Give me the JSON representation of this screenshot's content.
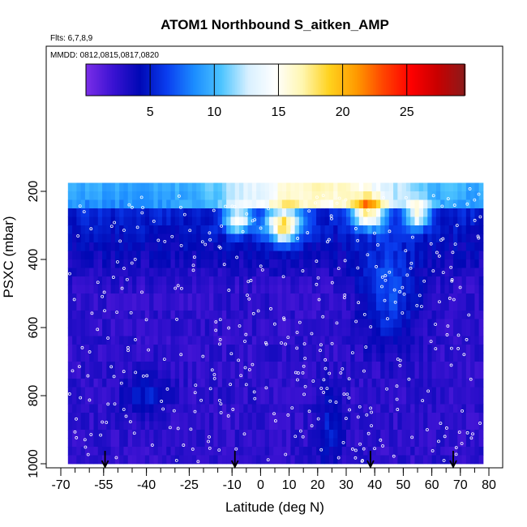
{
  "chart_data": {
    "type": "heatmap",
    "title": "ATOM1 Northbound S_aitken_AMP",
    "flights_label": "Flts: 6,7,8,9",
    "dates_label": "MMDD: 0812,0815,0817,0820",
    "xlabel": "Latitude (deg N)",
    "ylabel": "PSXC (mbar)",
    "xlim": [
      -70,
      80
    ],
    "ylim": [
      1000,
      0
    ],
    "data_extent": {
      "lat": [
        -67.5,
        77.5
      ],
      "pressure": [
        175,
        1000
      ]
    },
    "x_ticks": [
      -70,
      -55,
      -40,
      -25,
      -10,
      0,
      10,
      20,
      30,
      40,
      50,
      60,
      70,
      80
    ],
    "x_minor_step": 5,
    "y_ticks": [
      200,
      400,
      600,
      800,
      1000
    ],
    "colorbar": {
      "min": 0,
      "max": 29.5,
      "ticks": [
        5,
        10,
        15,
        20,
        25
      ],
      "colors": [
        "#7b2ee8",
        "#3a12d2",
        "#0008b5",
        "#0a3ef0",
        "#1b8cff",
        "#4cc4ff",
        "#d8f0ff",
        "#ffffff",
        "#fff6b0",
        "#ffd21e",
        "#ff9a00",
        "#ff4400",
        "#ff0000",
        "#c80000",
        "#8c1a1a"
      ]
    },
    "flight_arrows_lat": [
      -54.5,
      -9,
      38.5,
      67.5
    ],
    "grid": false,
    "legend": "colorbar-top"
  }
}
